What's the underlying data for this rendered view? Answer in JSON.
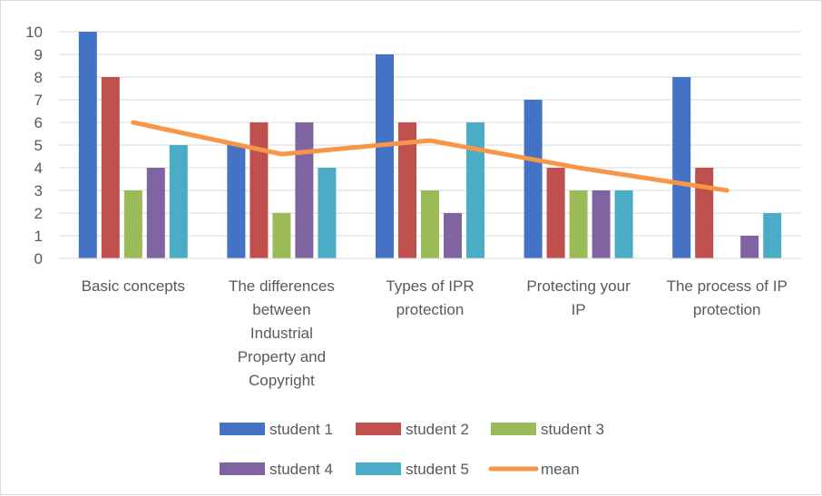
{
  "chart_data": {
    "type": "bar",
    "title": "",
    "xlabel": "",
    "ylabel": "",
    "ylim": [
      0,
      10
    ],
    "yticks": [
      0,
      1,
      2,
      3,
      4,
      5,
      6,
      7,
      8,
      9,
      10
    ],
    "grid": true,
    "legend_position": "bottom",
    "categories": [
      [
        "Basic concepts"
      ],
      [
        "The differences",
        "between",
        "Industrial",
        "Property and",
        "Copyright"
      ],
      [
        "Types of IPR",
        "protection"
      ],
      [
        "Protecting your",
        "IP"
      ],
      [
        "The process of IP",
        "protection"
      ]
    ],
    "series": [
      {
        "name": "student 1",
        "type": "bar",
        "color": "#4472c4",
        "values": [
          10,
          5,
          9,
          7,
          8
        ]
      },
      {
        "name": "student 2",
        "type": "bar",
        "color": "#c0504d",
        "values": [
          8,
          6,
          6,
          4,
          4
        ]
      },
      {
        "name": "student 3",
        "type": "bar",
        "color": "#9bbb59",
        "values": [
          3,
          2,
          3,
          3,
          0
        ]
      },
      {
        "name": "student 4",
        "type": "bar",
        "color": "#8064a2",
        "values": [
          4,
          6,
          2,
          3,
          1
        ]
      },
      {
        "name": "student 5",
        "type": "bar",
        "color": "#4bacc6",
        "values": [
          5,
          4,
          6,
          3,
          2
        ]
      },
      {
        "name": "mean",
        "type": "line",
        "color": "#f79646",
        "values": [
          6,
          4.6,
          5.2,
          4,
          3
        ]
      }
    ]
  }
}
